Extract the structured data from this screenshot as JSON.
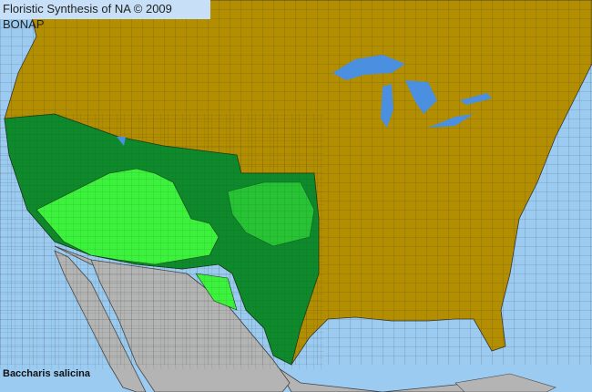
{
  "title": "Floristic Synthesis of NA © 2009 BONAP",
  "species": "Baccharis salicina",
  "colors": {
    "ocean": "#9ccbf2",
    "lakes": "#4a8fe0",
    "not_present_region": "#b38e00",
    "present_county": "#0e8a2c",
    "present_native_highlight": "#3cf23c",
    "outside_range": "#b4b4b4",
    "county_lines": "#3a3a3a"
  }
}
